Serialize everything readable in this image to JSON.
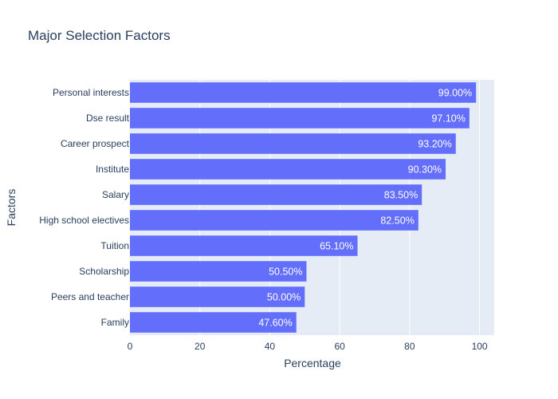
{
  "chart_data": {
    "type": "bar",
    "orientation": "horizontal",
    "title": "Major Selection Factors",
    "xlabel": "Percentage",
    "ylabel": "Factors",
    "categories": [
      "Personal interests",
      "Dse result",
      "Career prospect",
      "Institute",
      "Salary",
      "High school electives",
      "Tuition",
      "Scholarship",
      "Peers and teacher",
      "Family"
    ],
    "values": [
      99.0,
      97.1,
      93.2,
      90.3,
      83.5,
      82.5,
      65.1,
      50.5,
      50.0,
      47.6
    ],
    "data_labels": [
      "99.00%",
      "97.10%",
      "93.20%",
      "90.30%",
      "83.50%",
      "82.50%",
      "65.10%",
      "50.50%",
      "50.00%",
      "47.60%"
    ],
    "xlim": [
      0,
      104.2
    ],
    "xticks": [
      0,
      20,
      40,
      60,
      80,
      100
    ],
    "xtick_labels": [
      "0",
      "20",
      "40",
      "60",
      "80",
      "100"
    ],
    "grid": true,
    "legend": "none"
  },
  "colors": {
    "bar": "#636efa",
    "plot_background": "#e5ecf6",
    "grid": "#ffffff",
    "text": "#2a3f5f"
  }
}
